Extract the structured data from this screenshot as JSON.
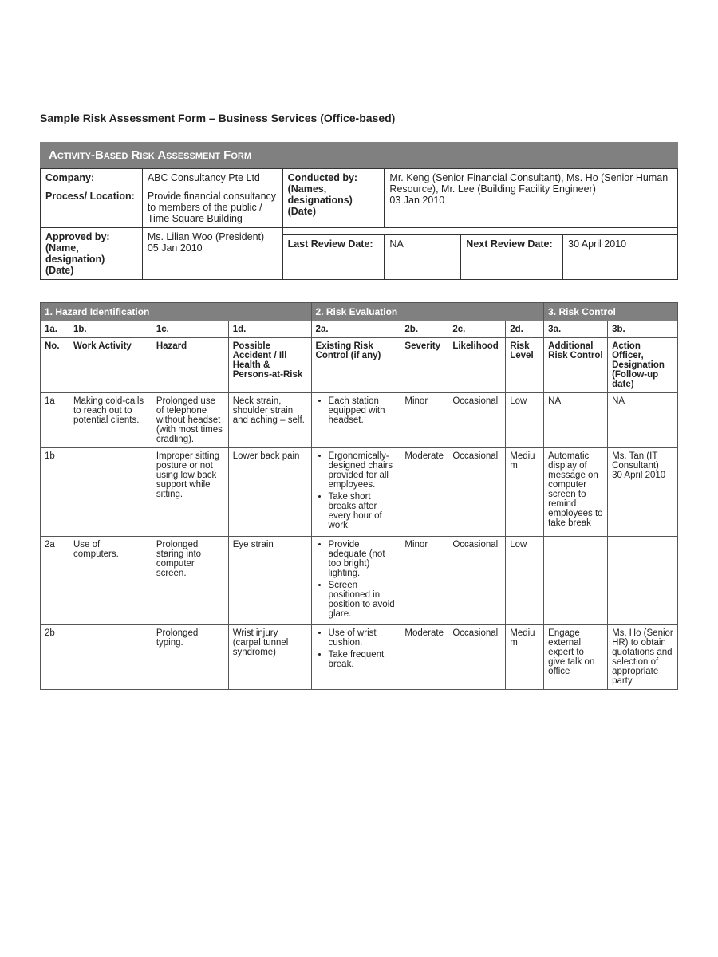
{
  "doc": {
    "title": "Sample Risk Assessment Form – Business Services (Office-based)",
    "banner": "Activity-Based Risk Assessment Form"
  },
  "colors": {
    "banner_bg": "#808080",
    "banner_fg": "#ffffff",
    "border": "#333333",
    "page_bg": "#ffffff"
  },
  "header": {
    "labels": {
      "company": "Company:",
      "process": "Process/ Location:",
      "approved": "Approved by:\n(Name, designation)\n(Date)",
      "conducted": "Conducted by:\n(Names, designations)\n(Date)",
      "last_review": "Last Review Date:",
      "next_review": "Next Review Date:"
    },
    "values": {
      "company": "ABC Consultancy Pte Ltd",
      "process": "Provide financial consultancy to members of the public / Time Square Building",
      "approved": "Ms. Lilian Woo (President)\n05 Jan 2010",
      "conducted": "Mr. Keng (Senior Financial Consultant), Ms. Ho (Senior Human Resource), Mr. Lee (Building Facility Engineer)\n03 Jan 2010",
      "last_review": "NA",
      "next_review": "30 April 2010"
    }
  },
  "risk_table": {
    "sections": {
      "s1": "1. Hazard Identification",
      "s2": "2. Risk Evaluation",
      "s3": "3. Risk Control"
    },
    "sub_ids": {
      "c1a": "1a.",
      "c1b": "1b.",
      "c1c": "1c.",
      "c1d": "1d.",
      "c2a": "2a.",
      "c2b": "2b.",
      "c2c": "2c.",
      "c2d": "2d.",
      "c3a": "3a.",
      "c3b": "3b."
    },
    "col_heads": {
      "c1a": "No.",
      "c1b": "Work Activity",
      "c1c": "Hazard",
      "c1d": "Possible Accident / Ill Health & Persons-at-Risk",
      "c2a": "Existing Risk Control (if any)",
      "c2b": "Severity",
      "c2c": "Likelihood",
      "c2d": "Risk Level",
      "c3a": "Additional Risk Control",
      "c3b": "Action Officer, Designation (Follow-up date)"
    },
    "col_widths_pct": [
      4.5,
      13,
      12,
      13,
      14,
      7.5,
      9,
      6,
      10,
      11
    ],
    "rows": [
      {
        "no": "1a",
        "activity": "Making cold-calls to reach out to potential clients.",
        "hazard": "Prolonged use of telephone without headset (with most times cradling).",
        "accident": "Neck strain, shoulder strain and aching – self.",
        "controls": [
          "Each station equipped with headset."
        ],
        "severity": "Minor",
        "likelihood": "Occasional",
        "risk_level": "Low",
        "additional": "NA",
        "officer": "NA"
      },
      {
        "no": "1b",
        "activity": "",
        "hazard": "Improper sitting posture or not using low back support while sitting.",
        "accident": "Lower back pain",
        "controls": [
          "Ergonomically-designed chairs provided for all employees.",
          "Take short breaks after every hour of work."
        ],
        "severity": "Moderate",
        "likelihood": "Occasional",
        "risk_level": "Medium",
        "additional": "Automatic display of message on computer screen to remind employees to take break",
        "officer": "Ms. Tan (IT Consultant)\n30 April 2010"
      },
      {
        "no": "2a",
        "activity": "Use of computers.",
        "hazard": "Prolonged staring into computer screen.",
        "accident": "Eye strain",
        "controls": [
          "Provide adequate (not too bright) lighting.",
          "Screen positioned in position to avoid glare."
        ],
        "severity": "Minor",
        "likelihood": "Occasional",
        "risk_level": "Low",
        "additional": "",
        "officer": ""
      },
      {
        "no": "2b",
        "activity": "",
        "hazard": "Prolonged typing.",
        "accident": "Wrist injury (carpal tunnel syndrome)",
        "controls": [
          "Use of wrist cushion.",
          "Take frequent break."
        ],
        "severity": "Moderate",
        "likelihood": "Occasional",
        "risk_level": "Medium",
        "additional": "Engage external expert to give talk on office",
        "officer": "Ms. Ho (Senior HR) to obtain quotations and selection of appropriate party"
      }
    ]
  }
}
